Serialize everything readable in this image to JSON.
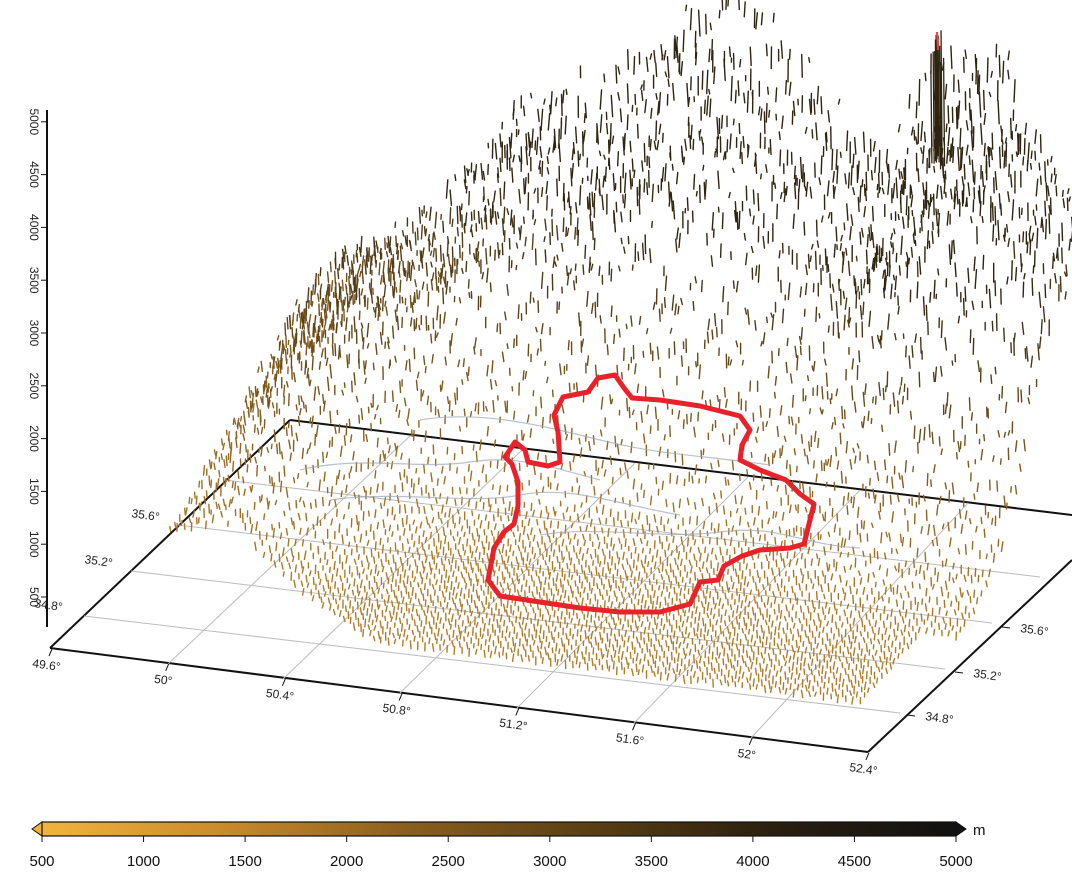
{
  "z_axis": {
    "ticks": [
      "500",
      "1000",
      "1500",
      "2000",
      "2500",
      "3000",
      "3500",
      "4000",
      "4500",
      "5000"
    ]
  },
  "lon_axis": {
    "ticks": [
      "49.6°",
      "50°",
      "50.4°",
      "50.8°",
      "51.2°",
      "51.6°",
      "52°",
      "52.4°"
    ]
  },
  "lat_axis_left": {
    "ticks": [
      "34.8°",
      "35.2°",
      "35.6°"
    ]
  },
  "lat_axis_right": {
    "ticks": [
      "34.8°",
      "35.2°",
      "35.6°"
    ]
  },
  "colorbar": {
    "unit": "m",
    "ticks": [
      "500",
      "1000",
      "1500",
      "2000",
      "2500",
      "3000",
      "3500",
      "4000",
      "4500",
      "5000"
    ],
    "colors": [
      "#f2b33d",
      "#c98a2a",
      "#8a5f1c",
      "#5a3f14",
      "#2a1f10",
      "#111111"
    ]
  },
  "terrain": {
    "low_color": "#c98a2a",
    "high_color": "#2e2410",
    "peak_color": "#ff3b3b",
    "contour_color": "#9aa8b8"
  },
  "outline": {
    "color": "#e8212a"
  }
}
